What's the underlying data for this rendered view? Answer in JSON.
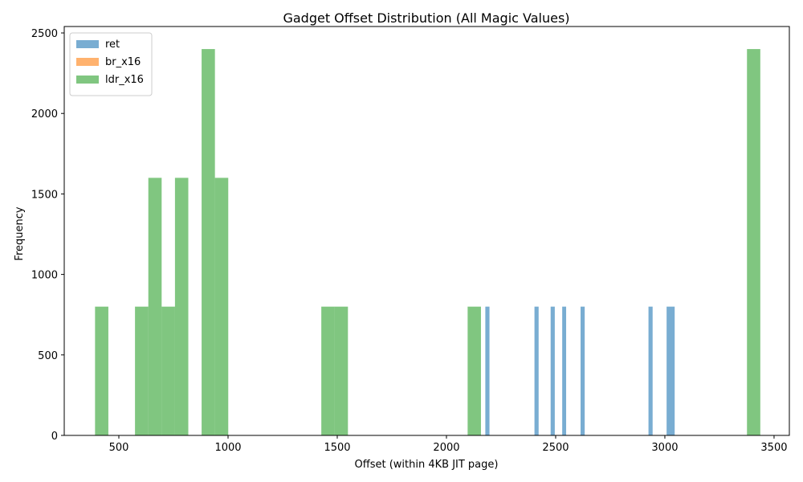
{
  "chart_data": {
    "type": "bar",
    "title": "Gadget Offset Distribution (All Magic Values)",
    "xlabel": "Offset (within 4KB JIT page)",
    "ylabel": "Frequency",
    "xlim": [
      250,
      3570
    ],
    "ylim": [
      0,
      2540
    ],
    "xticks": [
      500,
      1000,
      1500,
      2000,
      2500,
      3000,
      3500
    ],
    "yticks": [
      0,
      500,
      1000,
      1500,
      2000,
      2500
    ],
    "grid": false,
    "legend_position": "top-left",
    "series": [
      {
        "name": "ret",
        "color": "#1f77b4",
        "opacity": 0.6,
        "bins": [
          {
            "x0": 2178,
            "x1": 2197,
            "count": 800
          },
          {
            "x0": 2403,
            "x1": 2422,
            "count": 800
          },
          {
            "x0": 2477,
            "x1": 2496,
            "count": 800
          },
          {
            "x0": 2530,
            "x1": 2548,
            "count": 800
          },
          {
            "x0": 2614,
            "x1": 2633,
            "count": 800
          },
          {
            "x0": 2925,
            "x1": 2944,
            "count": 800
          },
          {
            "x0": 3008,
            "x1": 3045,
            "count": 800
          }
        ]
      },
      {
        "name": "br_x16",
        "color": "#ff7f0e",
        "opacity": 0.6,
        "bins": []
      },
      {
        "name": "ldr_x16",
        "color": "#2ca02c",
        "opacity": 0.6,
        "bins": [
          {
            "x0": 391,
            "x1": 452,
            "count": 800
          },
          {
            "x0": 574,
            "x1": 635,
            "count": 800
          },
          {
            "x0": 635,
            "x1": 696,
            "count": 1600
          },
          {
            "x0": 696,
            "x1": 757,
            "count": 800
          },
          {
            "x0": 757,
            "x1": 818,
            "count": 1600
          },
          {
            "x0": 879,
            "x1": 940,
            "count": 2400
          },
          {
            "x0": 940,
            "x1": 1001,
            "count": 1600
          },
          {
            "x0": 1427,
            "x1": 1488,
            "count": 800
          },
          {
            "x0": 1488,
            "x1": 1549,
            "count": 800
          },
          {
            "x0": 2097,
            "x1": 2158,
            "count": 800
          },
          {
            "x0": 3376,
            "x1": 3437,
            "count": 2400
          }
        ]
      }
    ]
  }
}
